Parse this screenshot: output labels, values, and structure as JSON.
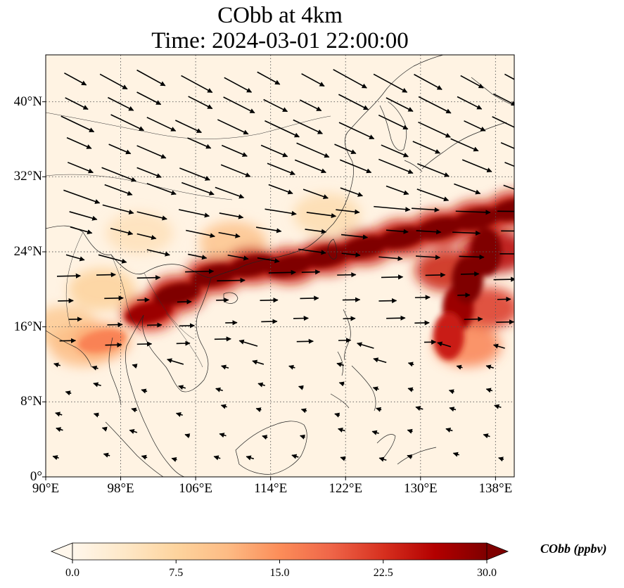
{
  "title": {
    "line1": "CObb at 4km",
    "line2": "Time: 2024-03-01 22:00:00"
  },
  "map": {
    "lon_range": [
      90,
      140
    ],
    "lat_range": [
      0,
      45
    ],
    "lat_ticks": [
      {
        "value": 40,
        "label": "40°N"
      },
      {
        "value": 32,
        "label": "32°N"
      },
      {
        "value": 24,
        "label": "24°N"
      },
      {
        "value": 16,
        "label": "16°N"
      },
      {
        "value": 8,
        "label": "8°N"
      },
      {
        "value": 0,
        "label": "0°"
      }
    ],
    "lon_ticks": [
      {
        "value": 90,
        "label": "90°E"
      },
      {
        "value": 98,
        "label": "98°E"
      },
      {
        "value": 106,
        "label": "106°E"
      },
      {
        "value": 114,
        "label": "114°E"
      },
      {
        "value": 122,
        "label": "122°E"
      },
      {
        "value": 130,
        "label": "130°E"
      },
      {
        "value": 138,
        "label": "138°E"
      }
    ],
    "gridlines": "dotted",
    "field": "CObb concentration (filled) with wind vectors",
    "colormap": "OrRd",
    "plume": [
      {
        "lon": 96,
        "lat": 14.5,
        "conc": 16
      },
      {
        "lon": 101,
        "lat": 17.5,
        "conc": 28
      },
      {
        "lon": 104,
        "lat": 19.5,
        "conc": 30
      },
      {
        "lon": 108,
        "lat": 21.5,
        "conc": 30
      },
      {
        "lon": 112,
        "lat": 22.5,
        "conc": 30
      },
      {
        "lon": 116,
        "lat": 22.5,
        "conc": 30
      },
      {
        "lon": 120,
        "lat": 23.5,
        "conc": 30
      },
      {
        "lon": 124,
        "lat": 24.5,
        "conc": 30
      },
      {
        "lon": 128,
        "lat": 25.5,
        "conc": 30
      },
      {
        "lon": 132,
        "lat": 26.5,
        "conc": 30
      },
      {
        "lon": 136,
        "lat": 27.5,
        "conc": 30
      },
      {
        "lon": 140,
        "lat": 28.5,
        "conc": 30
      }
    ]
  },
  "colorbar": {
    "label": "CObb (ppbv)",
    "min": 0.0,
    "max": 30.0,
    "ticks": [
      "0.0",
      "7.5",
      "15.0",
      "22.5",
      "30.0"
    ],
    "extend": "both",
    "colors": [
      "#fff7ec",
      "#fee8c8",
      "#fdd49e",
      "#fdbb84",
      "#fc8d59",
      "#ef6548",
      "#d7301f",
      "#b30000",
      "#7f0000"
    ]
  }
}
